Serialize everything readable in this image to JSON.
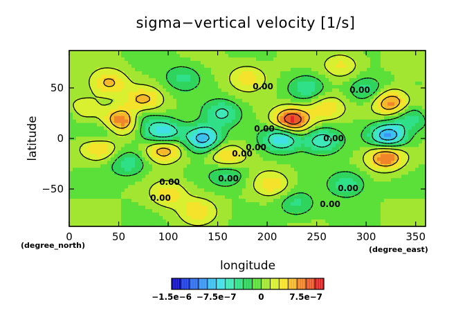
{
  "chart_data": {
    "type": "heatmap",
    "title": "sigma−vertical velocity [1/s]",
    "xlabel": "longitude",
    "ylabel": "latitude",
    "x_unit": "(degree_east)",
    "y_unit": "(degree_north)",
    "xlim": [
      0,
      360
    ],
    "ylim": [
      -87,
      87
    ],
    "x_ticks": [
      "0",
      "50",
      "100",
      "150",
      "200",
      "250",
      "300",
      "350"
    ],
    "x_tick_values": [
      0,
      50,
      100,
      150,
      200,
      250,
      300,
      350
    ],
    "y_ticks": [
      "−50",
      "0",
      "50"
    ],
    "y_tick_values": [
      -50,
      0,
      50
    ],
    "contour_labels": [
      "0.00",
      "0.00",
      "0.00",
      "0.00",
      "0.00",
      "0.00",
      "0.00",
      "0.00",
      "0.00",
      "0.00",
      "0.00"
    ],
    "colorbar": {
      "levels": [
        -1.5e-06,
        -1.35e-06,
        -1.2e-06,
        -1.05e-06,
        -9e-07,
        -7.5e-07,
        -6e-07,
        -4.5e-07,
        -3e-07,
        -1.5e-07,
        0,
        1.5e-07,
        3e-07,
        4.5e-07,
        6e-07,
        7.5e-07,
        9e-07,
        1.05e-06
      ],
      "colors": [
        "#1010c8",
        "#1f40e6",
        "#2f6ff2",
        "#3a95f5",
        "#3cc0f0",
        "#40e0e6",
        "#3ee8b8",
        "#30e088",
        "#2ed45c",
        "#5be03a",
        "#a2e632",
        "#d8f030",
        "#f5e22a",
        "#f5b82a",
        "#f0852a",
        "#e85a2a",
        "#e02828"
      ],
      "tick_labels": [
        "−1.5e−6",
        "−7.5e−7",
        "0",
        "7.5e−7"
      ],
      "tick_values": [
        -1.5e-06,
        -7.5e-07,
        0,
        7.5e-07
      ]
    },
    "field_features": [
      {
        "lon": 55,
        "lat": 18,
        "value": 9e-07
      },
      {
        "lon": 95,
        "lat": -10,
        "value": 7e-07
      },
      {
        "lon": 225,
        "lat": 18,
        "value": 1e-06
      },
      {
        "lon": 320,
        "lat": -18,
        "value": 8e-07
      },
      {
        "lon": 325,
        "lat": 35,
        "value": 7e-07
      },
      {
        "lon": 30,
        "lat": -8,
        "value": 6e-07
      },
      {
        "lon": 160,
        "lat": -18,
        "value": 5e-07
      },
      {
        "lon": 180,
        "lat": 60,
        "value": 4e-07
      },
      {
        "lon": 40,
        "lat": 55,
        "value": 5e-07
      },
      {
        "lon": 75,
        "lat": 38,
        "value": 5e-07
      },
      {
        "lon": 260,
        "lat": 30,
        "value": 4e-07
      },
      {
        "lon": 100,
        "lat": -55,
        "value": 4e-07
      },
      {
        "lon": 205,
        "lat": -45,
        "value": 4e-07
      },
      {
        "lon": 130,
        "lat": -72,
        "value": 4e-07
      },
      {
        "lon": 275,
        "lat": 72,
        "value": 3.5e-07
      },
      {
        "lon": 15,
        "lat": 30,
        "value": 3e-07
      },
      {
        "lon": 95,
        "lat": 5,
        "value": -8e-07
      },
      {
        "lon": 135,
        "lat": 0,
        "value": -9e-07
      },
      {
        "lon": 215,
        "lat": 0,
        "value": -8e-07
      },
      {
        "lon": 255,
        "lat": -2,
        "value": -6e-07
      },
      {
        "lon": 322,
        "lat": 2,
        "value": -1e-06
      },
      {
        "lon": 30,
        "lat": 2,
        "value": -4.5e-07
      },
      {
        "lon": 70,
        "lat": 20,
        "value": -4.5e-07
      },
      {
        "lon": 155,
        "lat": 25,
        "value": -5e-07
      },
      {
        "lon": 160,
        "lat": -35,
        "value": -4e-07
      },
      {
        "lon": 240,
        "lat": 50,
        "value": -4e-07
      },
      {
        "lon": 300,
        "lat": 48,
        "value": -4e-07
      },
      {
        "lon": 280,
        "lat": -45,
        "value": -4.5e-07
      },
      {
        "lon": 60,
        "lat": -25,
        "value": -4e-07
      },
      {
        "lon": 115,
        "lat": 60,
        "value": -3.5e-07
      },
      {
        "lon": 345,
        "lat": 20,
        "value": -4e-07
      },
      {
        "lon": 230,
        "lat": -65,
        "value": -3.5e-07
      }
    ]
  }
}
